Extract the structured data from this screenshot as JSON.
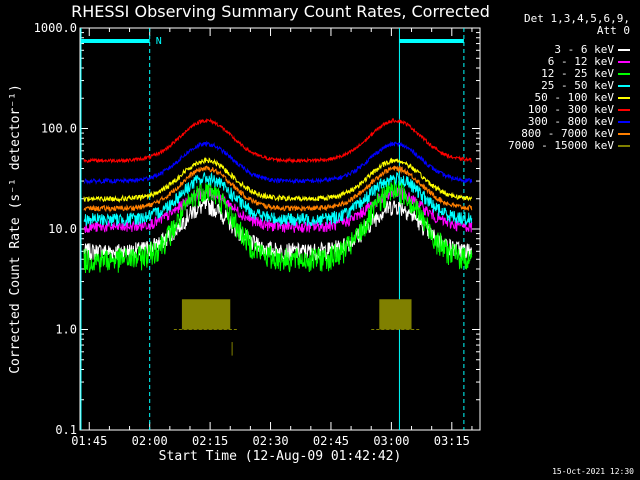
{
  "chart_data": {
    "type": "line",
    "title": "RHESSI Observing Summary Count Rates, Corrected",
    "xlabel": "Start Time (12-Aug-09 01:42:42)",
    "ylabel": "Corrected Count Rate (s⁻¹ detector⁻¹)",
    "y_scale": "log",
    "ylim": [
      0.1,
      1000
    ],
    "y_ticks": [
      {
        "value": 0.1,
        "label": "0.1"
      },
      {
        "value": 1,
        "label": "1.0"
      },
      {
        "value": 10,
        "label": "10.0"
      },
      {
        "value": 100,
        "label": "100.0"
      },
      {
        "value": 1000,
        "label": "1000.0"
      }
    ],
    "x_start": "01:42:42",
    "x_end": "03:22:00",
    "x_ticks": [
      "01:45",
      "02:00",
      "02:15",
      "02:30",
      "02:45",
      "03:00",
      "03:15"
    ],
    "legend": {
      "header": [
        "Det 1,3,4,5,6,9,",
        "Att 0"
      ],
      "placement": "right"
    },
    "series": [
      {
        "name": "3 - 6 keV",
        "color": "#ffffff",
        "base": 6,
        "peak": 17,
        "noise": 0.2
      },
      {
        "name": "6 - 12 keV",
        "color": "#ff00ff",
        "base": 10.5,
        "peak": 23,
        "noise": 0.13
      },
      {
        "name": "12 - 25 keV",
        "color": "#00ff00",
        "base": 5,
        "peak": 25,
        "noise": 0.28
      },
      {
        "name": "25 - 50 keV",
        "color": "#00ffff",
        "base": 12.5,
        "peak": 32,
        "noise": 0.15
      },
      {
        "name": "50 - 100 keV",
        "color": "#ffff00",
        "base": 20,
        "peak": 48,
        "noise": 0.06
      },
      {
        "name": "100 - 300 keV",
        "color": "#ff0000",
        "base": 48,
        "peak": 120,
        "noise": 0.04
      },
      {
        "name": "300 - 800 keV",
        "color": "#0000ff",
        "base": 30,
        "peak": 70,
        "noise": 0.05
      },
      {
        "name": "800 - 7000 keV",
        "color": "#ff7f00",
        "base": 16,
        "peak": 40,
        "noise": 0.06
      },
      {
        "name": "7000 - 15000 keV",
        "color": "#808000",
        "base": 1,
        "peak": 2,
        "noise": 0
      }
    ],
    "peaks": [
      "02:14",
      "03:01"
    ],
    "flags": {
      "night_label": "N",
      "color": "#00ffff"
    },
    "event_lines": [
      "01:42:42",
      "02:00",
      "03:02",
      "03:18"
    ]
  },
  "footer": {
    "timestamp": "15-Oct-2021 12:30"
  }
}
